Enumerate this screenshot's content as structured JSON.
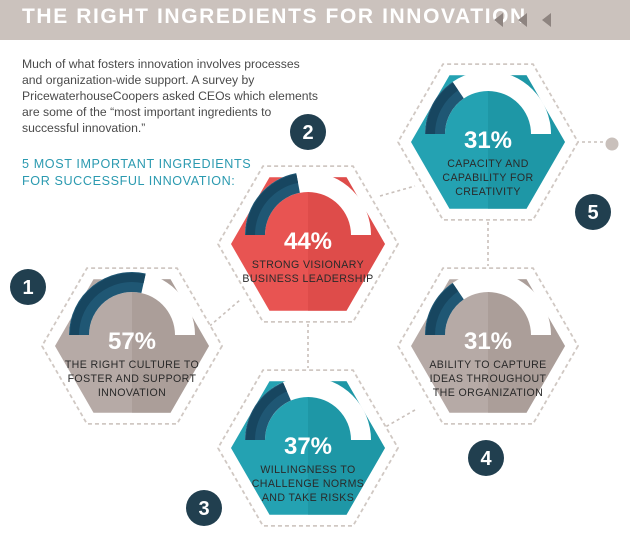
{
  "header": {
    "title": "THE RIGHT INGREDIENTS FOR INNOVATION"
  },
  "intro": "Much of what fosters innovation involves processes and organization-wide support. A survey by PricewaterhouseCoopers asked CEOs which elements are some of the “most important ingredients to successful innovation.”",
  "icons": [
    "left-arrow-icon",
    "left-arrow-icon",
    "left-arrow-icon"
  ],
  "colors": {
    "accent": "#2b9ab0",
    "banner": "#cbc2bd",
    "badge": "#213f4f"
  },
  "chart_data": {
    "type": "gauge",
    "subtitle_lines": [
      "5 MOST IMPORTANT INGREDIENTS",
      "FOR SUCCESSFUL INNOVATION:"
    ],
    "items": [
      {
        "rank": 1,
        "label": "1",
        "percent": 57,
        "value_label": "57%",
        "text_lines": [
          "THE RIGHT CULTURE TO",
          "FOSTER AND SUPPORT",
          "INNOVATION"
        ],
        "color": "#b6aaa6",
        "color_dark": "#a2938e"
      },
      {
        "rank": 2,
        "label": "2",
        "percent": 44,
        "value_label": "44%",
        "text_lines": [
          "STRONG VISIONARY",
          "BUSINESS LEADERSHIP"
        ],
        "color": "#e85452",
        "color_dark": "#d64543"
      },
      {
        "rank": 3,
        "label": "3",
        "percent": 37,
        "value_label": "37%",
        "text_lines": [
          "WILLINGNESS TO",
          "CHALLENGE NORMS",
          "AND TAKE RISKS"
        ],
        "color": "#24a2b2",
        "color_dark": "#1a8e9c"
      },
      {
        "rank": 4,
        "label": "4",
        "percent": 31,
        "value_label": "31%",
        "text_lines": [
          "ABILITY TO CAPTURE",
          "IDEAS THROUGHOUT",
          "THE ORGANIZATION"
        ],
        "color": "#b6aaa6",
        "color_dark": "#a2938e"
      },
      {
        "rank": 5,
        "label": "5",
        "percent": 31,
        "value_label": "31%",
        "text_lines": [
          "CAPACITY AND",
          "CAPABILITY FOR",
          "CREATIVITY"
        ],
        "color": "#24a2b2",
        "color_dark": "#1a8e9c"
      }
    ]
  }
}
